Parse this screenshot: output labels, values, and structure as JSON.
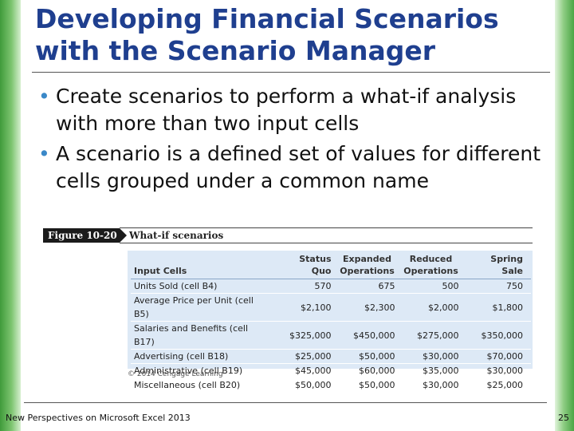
{
  "slide": {
    "title_line1": "Developing Financial Scenarios",
    "title_line2": "with the Scenario Manager",
    "bullets": [
      "Create scenarios to perform a what-if analysis with more than two input cells",
      "A scenario is a defined set of values for different cells grouped under a common name"
    ]
  },
  "figure": {
    "number": "Figure 10-20",
    "title": "What-if scenarios",
    "credit": "© 2014 Cengage Learning",
    "table": {
      "headers": [
        "Input Cells",
        "Status Quo",
        "Expanded Operations",
        "Reduced Operations",
        "Spring Sale"
      ],
      "rows": [
        [
          "Units Sold (cell B4)",
          "570",
          "675",
          "500",
          "750"
        ],
        [
          "Average Price per Unit (cell B5)",
          "$2,100",
          "$2,300",
          "$2,000",
          "$1,800"
        ],
        [
          "Salaries and Benefits (cell B17)",
          "$325,000",
          "$450,000",
          "$275,000",
          "$350,000"
        ],
        [
          "Advertising (cell B18)",
          "$25,000",
          "$50,000",
          "$30,000",
          "$70,000"
        ],
        [
          "Administrative (cell B19)",
          "$45,000",
          "$60,000",
          "$35,000",
          "$30,000"
        ],
        [
          "Miscellaneous (cell B20)",
          "$50,000",
          "$50,000",
          "$30,000",
          "$25,000"
        ]
      ]
    }
  },
  "footer": {
    "left": "New Perspectives on Microsoft Excel 2013",
    "page": "25"
  },
  "colors": {
    "title": "#1f3f8f",
    "bullet": "#3a88c8",
    "table_bg": "#dde9f6",
    "side_accent": "#4aa644"
  }
}
